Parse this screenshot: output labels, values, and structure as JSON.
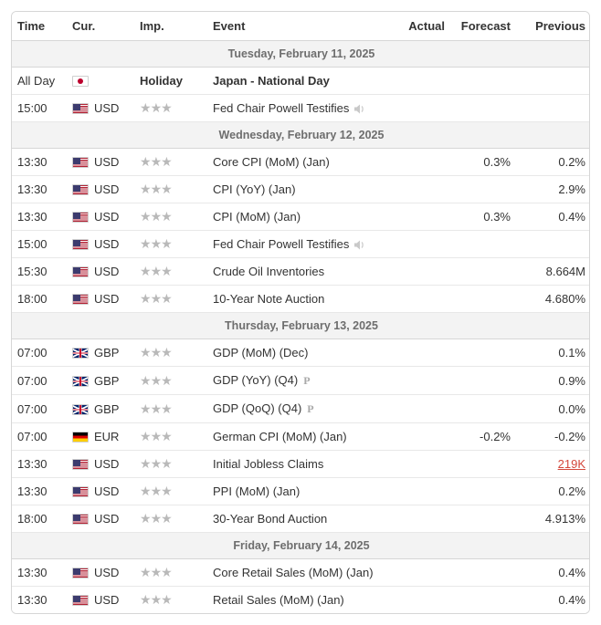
{
  "columns": {
    "time": "Time",
    "cur": "Cur.",
    "imp": "Imp.",
    "event": "Event",
    "actual": "Actual",
    "forecast": "Forecast",
    "previous": "Previous"
  },
  "colors": {
    "text": "#333333",
    "muted": "#6e6e6e",
    "border": "#d6d6d6",
    "row_border": "#e8e8e8",
    "day_bg": "#f3f3f3",
    "star": "#b9b9b9",
    "highlight_red": "#d4483c",
    "background": "#ffffff"
  },
  "days": [
    {
      "label": "Tuesday, February 11, 2025",
      "rows": [
        {
          "time": "All Day",
          "flag": "jp",
          "cur": "",
          "imp": 0,
          "imp_label": "Holiday",
          "event": "Japan - National Day",
          "actual": "",
          "forecast": "",
          "previous": "",
          "bold": true
        },
        {
          "time": "15:00",
          "flag": "us",
          "cur": "USD",
          "imp": 3,
          "event": "Fed Chair Powell Testifies",
          "icon": "speaker",
          "actual": "",
          "forecast": "",
          "previous": ""
        }
      ]
    },
    {
      "label": "Wednesday, February 12, 2025",
      "rows": [
        {
          "time": "13:30",
          "flag": "us",
          "cur": "USD",
          "imp": 3,
          "event": "Core CPI (MoM) (Jan)",
          "actual": "",
          "forecast": "0.3%",
          "previous": "0.2%"
        },
        {
          "time": "13:30",
          "flag": "us",
          "cur": "USD",
          "imp": 3,
          "event": "CPI (YoY) (Jan)",
          "actual": "",
          "forecast": "",
          "previous": "2.9%"
        },
        {
          "time": "13:30",
          "flag": "us",
          "cur": "USD",
          "imp": 3,
          "event": "CPI (MoM) (Jan)",
          "actual": "",
          "forecast": "0.3%",
          "previous": "0.4%"
        },
        {
          "time": "15:00",
          "flag": "us",
          "cur": "USD",
          "imp": 3,
          "event": "Fed Chair Powell Testifies",
          "icon": "speaker",
          "actual": "",
          "forecast": "",
          "previous": ""
        },
        {
          "time": "15:30",
          "flag": "us",
          "cur": "USD",
          "imp": 3,
          "event": "Crude Oil Inventories",
          "actual": "",
          "forecast": "",
          "previous": "8.664M"
        },
        {
          "time": "18:00",
          "flag": "us",
          "cur": "USD",
          "imp": 3,
          "event": "10-Year Note Auction",
          "actual": "",
          "forecast": "",
          "previous": "4.680%"
        }
      ]
    },
    {
      "label": "Thursday, February 13, 2025",
      "rows": [
        {
          "time": "07:00",
          "flag": "gb",
          "cur": "GBP",
          "imp": 3,
          "event": "GDP (MoM) (Dec)",
          "actual": "",
          "forecast": "",
          "previous": "0.1%"
        },
        {
          "time": "07:00",
          "flag": "gb",
          "cur": "GBP",
          "imp": 3,
          "event": "GDP (YoY) (Q4)",
          "icon": "p",
          "actual": "",
          "forecast": "",
          "previous": "0.9%"
        },
        {
          "time": "07:00",
          "flag": "gb",
          "cur": "GBP",
          "imp": 3,
          "event": "GDP (QoQ) (Q4)",
          "icon": "p",
          "actual": "",
          "forecast": "",
          "previous": "0.0%"
        },
        {
          "time": "07:00",
          "flag": "de",
          "cur": "EUR",
          "imp": 3,
          "event": "German CPI (MoM) (Jan)",
          "actual": "",
          "forecast": "-0.2%",
          "previous": "-0.2%"
        },
        {
          "time": "13:30",
          "flag": "us",
          "cur": "USD",
          "imp": 3,
          "event": "Initial Jobless Claims",
          "actual": "",
          "forecast": "",
          "previous": "219K",
          "prev_red": true
        },
        {
          "time": "13:30",
          "flag": "us",
          "cur": "USD",
          "imp": 3,
          "event": "PPI (MoM) (Jan)",
          "actual": "",
          "forecast": "",
          "previous": "0.2%"
        },
        {
          "time": "18:00",
          "flag": "us",
          "cur": "USD",
          "imp": 3,
          "event": "30-Year Bond Auction",
          "actual": "",
          "forecast": "",
          "previous": "4.913%"
        }
      ]
    },
    {
      "label": "Friday, February 14, 2025",
      "rows": [
        {
          "time": "13:30",
          "flag": "us",
          "cur": "USD",
          "imp": 3,
          "event": "Core Retail Sales (MoM) (Jan)",
          "actual": "",
          "forecast": "",
          "previous": "0.4%"
        },
        {
          "time": "13:30",
          "flag": "us",
          "cur": "USD",
          "imp": 3,
          "event": "Retail Sales (MoM) (Jan)",
          "actual": "",
          "forecast": "",
          "previous": "0.4%"
        }
      ]
    }
  ]
}
